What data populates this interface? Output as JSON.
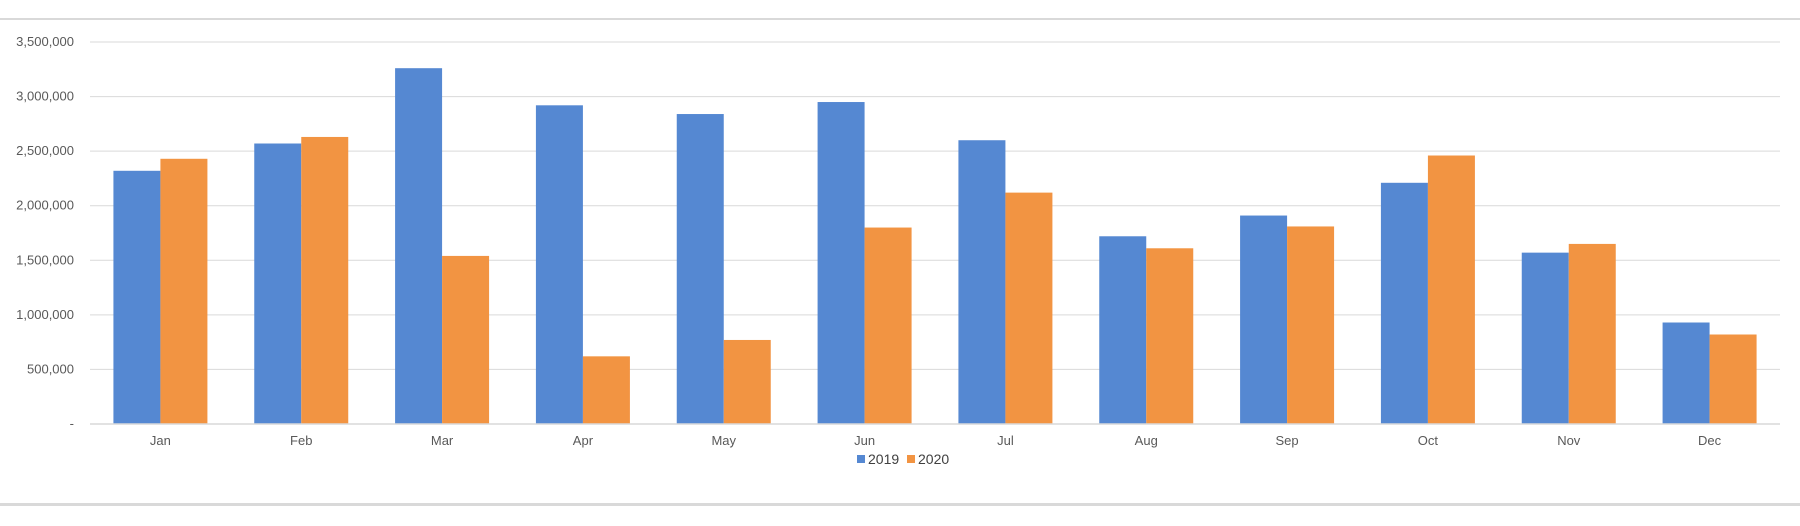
{
  "chart_data": {
    "type": "bar",
    "title": "",
    "xlabel": "",
    "ylabel": "",
    "categories": [
      "Jan",
      "Feb",
      "Mar",
      "Apr",
      "May",
      "Jun",
      "Jul",
      "Aug",
      "Sep",
      "Oct",
      "Nov",
      "Dec"
    ],
    "series": [
      {
        "name": "2019",
        "color": "#5588d2",
        "values": [
          2320000,
          2570000,
          3260000,
          2920000,
          2840000,
          2950000,
          2600000,
          1720000,
          1910000,
          2210000,
          1570000,
          930000
        ]
      },
      {
        "name": "2020",
        "color": "#f29442",
        "values": [
          2430000,
          2630000,
          1540000,
          620000,
          770000,
          1800000,
          2120000,
          1610000,
          1810000,
          2460000,
          1650000,
          820000
        ]
      }
    ],
    "ylim": [
      0,
      3500000
    ],
    "yticks": [
      0,
      500000,
      1000000,
      1500000,
      2000000,
      2500000,
      3000000,
      3500000
    ],
    "ytick_labels": [
      "-",
      "500,000",
      "1,000,000",
      "1,500,000",
      "2,000,000",
      "2,500,000",
      "3,000,000",
      "3,500,000"
    ],
    "grid": true,
    "legend_position": "bottom-center"
  }
}
